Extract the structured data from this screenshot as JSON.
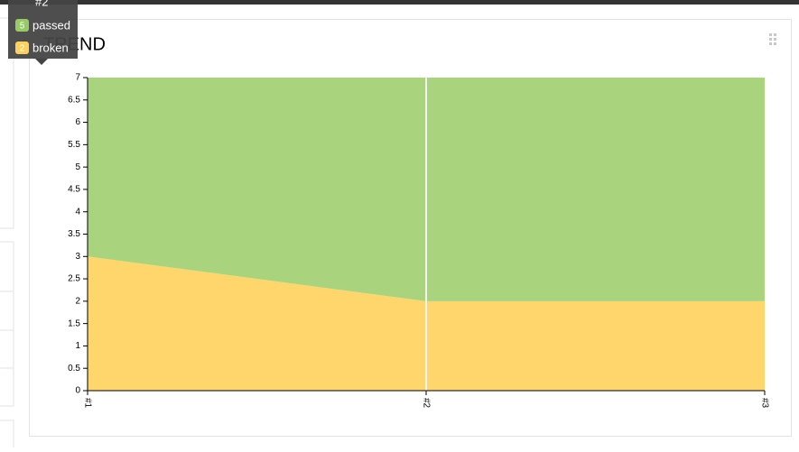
{
  "title": "TREND",
  "chart_data": {
    "type": "stacked-area",
    "categories": [
      "#1",
      "#2",
      "#3"
    ],
    "series": [
      {
        "name": "passed",
        "color": "#aad37e",
        "values": [
          4,
          5,
          5
        ]
      },
      {
        "name": "broken",
        "color": "#ffd66b",
        "values": [
          3,
          2,
          2
        ]
      }
    ],
    "ylim": [
      0,
      7
    ],
    "yticks": [
      0,
      0.5,
      1,
      1.5,
      2,
      2.5,
      3,
      3.5,
      4,
      4.5,
      5,
      5.5,
      6,
      6.5,
      7
    ],
    "grid": false
  },
  "tooltip": {
    "category_index": 1
  }
}
